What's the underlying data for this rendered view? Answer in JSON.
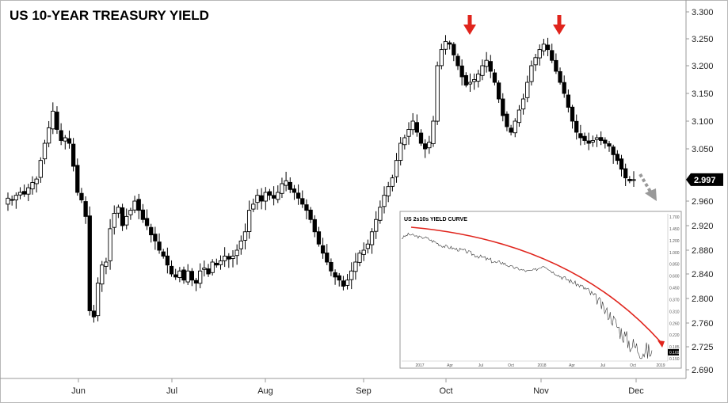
{
  "chart_data": [
    {
      "type": "candlestick",
      "title": "US 10-YEAR TREASURY YIELD",
      "x_ticks": [
        "Jun",
        "Jul",
        "Aug",
        "Sep",
        "Oct",
        "Nov",
        "Dec"
      ],
      "y_ticks": [
        "3.300",
        "3.250",
        "3.200",
        "3.150",
        "3.100",
        "3.050",
        "2.960",
        "2.920",
        "2.880",
        "2.840",
        "2.800",
        "2.760",
        "2.725",
        "2.690"
      ],
      "current_value": "2.997",
      "current_value_numeric": 2.997,
      "ylim": [
        2.68,
        3.31
      ],
      "grid": false,
      "annotations": [
        "down-arrow at early October high",
        "down-arrow at early November high",
        "dashed down-trend arrow near latest bar"
      ],
      "series_close": [
        2.965,
        2.962,
        2.97,
        2.975,
        2.972,
        2.983,
        2.992,
        2.998,
        3.03,
        3.06,
        3.088,
        3.118,
        3.085,
        3.065,
        3.07,
        3.06,
        3.02,
        2.975,
        2.962,
        2.935,
        2.78,
        2.77,
        2.825,
        2.855,
        2.86,
        2.915,
        2.94,
        2.95,
        2.92,
        2.935,
        2.945,
        2.96,
        2.945,
        2.93,
        2.92,
        2.905,
        2.895,
        2.88,
        2.87,
        2.855,
        2.84,
        2.835,
        2.845,
        2.83,
        2.845,
        2.83,
        2.825,
        2.845,
        2.85,
        2.84,
        2.86,
        2.855,
        2.862,
        2.87,
        2.865,
        2.87,
        2.88,
        2.895,
        2.91,
        2.945,
        2.955,
        2.97,
        2.96,
        2.975,
        2.97,
        2.965,
        2.975,
        2.99,
        2.995,
        2.98,
        2.975,
        2.965,
        2.955,
        2.945,
        2.93,
        2.91,
        2.89,
        2.875,
        2.86,
        2.845,
        2.835,
        2.83,
        2.82,
        2.83,
        2.845,
        2.86,
        2.875,
        2.88,
        2.89,
        2.91,
        2.93,
        2.95,
        2.97,
        2.985,
        3.0,
        3.03,
        3.06,
        3.07,
        3.085,
        3.1,
        3.08,
        3.06,
        3.05,
        3.062,
        3.1,
        3.2,
        3.23,
        3.245,
        3.24,
        3.22,
        3.2,
        3.18,
        3.165,
        3.17,
        3.175,
        3.185,
        3.2,
        3.21,
        3.19,
        3.17,
        3.14,
        3.11,
        3.09,
        3.08,
        3.1,
        3.12,
        3.14,
        3.17,
        3.2,
        3.215,
        3.23,
        3.24,
        3.23,
        3.21,
        3.19,
        3.17,
        3.15,
        3.125,
        3.1,
        3.08,
        3.07,
        3.065,
        3.06,
        3.065,
        3.07,
        3.065,
        3.06,
        3.055,
        3.04,
        3.03,
        3.015,
        3.0,
        2.995,
        2.997
      ]
    },
    {
      "type": "line",
      "title": "US 2s10s YIELD CURVE",
      "x_ticks": [
        "2017",
        "Apr",
        "Jul",
        "Oct",
        "2018",
        "Apr",
        "Jul",
        "Oct",
        "2019"
      ],
      "y_ticks": [
        "1.700",
        "1.450",
        "1.200",
        "1.000",
        "0.850",
        "0.600",
        "0.450",
        "0.370",
        "0.310",
        "0.260",
        "0.220",
        "0.185",
        "0.150"
      ],
      "current_value": "0.169",
      "current_value_numeric": 0.169,
      "ylim": [
        0.14,
        1.72
      ],
      "series": [
        {
          "values": [
            1.25,
            1.29,
            1.33,
            1.32,
            1.3,
            1.28,
            1.26,
            1.27,
            1.24,
            1.2,
            1.18,
            1.15,
            1.12,
            1.1,
            1.09,
            1.08,
            1.06,
            1.05,
            1.04,
            1.03,
            1.01,
            0.99,
            0.97,
            0.96,
            0.94,
            0.93,
            0.91,
            0.9,
            0.88,
            0.86,
            0.88,
            0.86,
            0.83,
            0.8,
            0.78,
            0.76,
            0.74,
            0.72,
            0.7,
            0.71,
            0.72,
            0.74,
            0.78,
            0.82,
            0.79,
            0.72,
            0.68,
            0.64,
            0.6,
            0.58,
            0.56,
            0.54,
            0.52,
            0.5,
            0.48,
            0.46,
            0.44,
            0.42,
            0.4,
            0.38,
            0.36,
            0.33,
            0.31,
            0.3,
            0.28,
            0.26,
            0.24,
            0.23,
            0.21,
            0.2,
            0.19,
            0.185,
            0.18,
            0.175,
            0.172,
            0.17,
            0.169
          ]
        }
      ]
    }
  ],
  "colors": {
    "annotation_red": "#e0241c",
    "annotation_grey": "#999999",
    "candle_outline": "#000000",
    "value_label_bg": "#000000"
  }
}
